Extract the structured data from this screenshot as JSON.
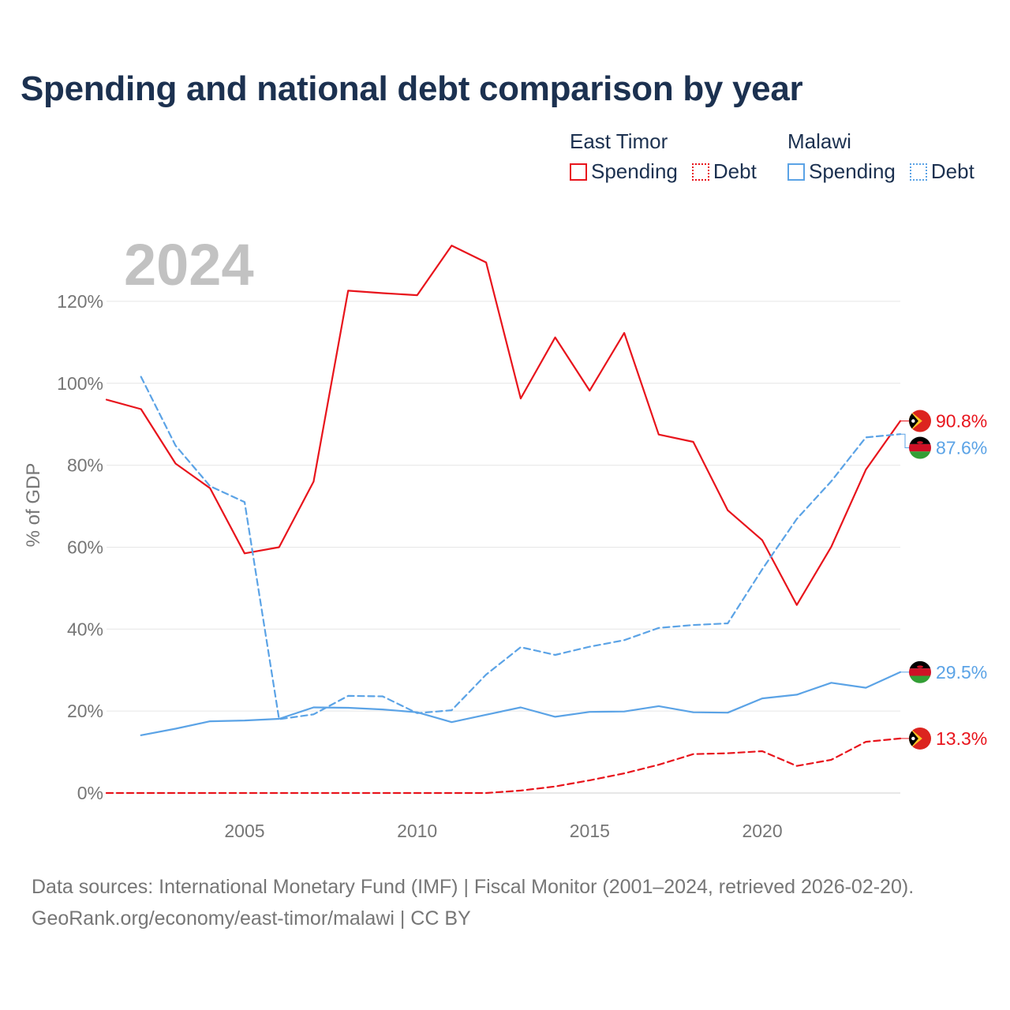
{
  "chart_data": {
    "type": "line",
    "title": "Spending and national debt comparison by year",
    "year_label": "2024",
    "ylabel": "% of GDP",
    "xlim": [
      2001,
      2024
    ],
    "ylim": [
      0,
      130
    ],
    "y_ticks": [
      0,
      20,
      40,
      60,
      80,
      100,
      120
    ],
    "y_tick_labels": [
      "0%",
      "20%",
      "40%",
      "60%",
      "80%",
      "100%",
      "120%"
    ],
    "x_ticks": [
      2005,
      2010,
      2015,
      2020
    ],
    "x_tick_labels": [
      "2005",
      "2010",
      "2015",
      "2020"
    ],
    "grid": true,
    "legend_groups": [
      {
        "name": "East Timor",
        "spending_label": "Spending",
        "debt_label": "Debt",
        "color": "#e8141c"
      },
      {
        "name": "Malawi",
        "spending_label": "Spending",
        "debt_label": "Debt",
        "color": "#5ba3e6"
      }
    ],
    "series": [
      {
        "id": "east-timor-spending",
        "name": "East Timor Spending",
        "country": "east-timor",
        "color": "#e8141c",
        "dash": false,
        "x": [
          2001,
          2002,
          2003,
          2004,
          2005,
          2006,
          2007,
          2008,
          2009,
          2010,
          2011,
          2012,
          2013,
          2014,
          2015,
          2016,
          2017,
          2018,
          2019,
          2020,
          2021,
          2022,
          2023,
          2024
        ],
        "values": [
          96,
          93.7,
          80.4,
          74.4,
          58.5,
          60,
          76,
          122.6,
          122,
          121.5,
          133.6,
          129.5,
          96.3,
          111.2,
          98.2,
          112.3,
          87.5,
          85.7,
          69,
          61.7,
          45.9,
          60.1,
          78.9,
          90.8
        ],
        "end_label": "90.8%"
      },
      {
        "id": "east-timor-debt",
        "name": "East Timor Debt",
        "country": "east-timor",
        "color": "#e8141c",
        "dash": true,
        "x": [
          2001,
          2002,
          2003,
          2004,
          2005,
          2006,
          2007,
          2008,
          2009,
          2010,
          2011,
          2012,
          2013,
          2014,
          2015,
          2016,
          2017,
          2018,
          2019,
          2020,
          2021,
          2022,
          2023,
          2024
        ],
        "values": [
          0,
          0,
          0,
          0,
          0,
          0,
          0,
          0,
          0,
          0,
          0,
          0,
          0.6,
          1.6,
          3.1,
          4.8,
          6.9,
          9.5,
          9.7,
          10.2,
          6.6,
          8.1,
          12.5,
          13.3
        ],
        "end_label": "13.3%"
      },
      {
        "id": "malawi-spending",
        "name": "Malawi Spending",
        "country": "malawi",
        "color": "#5ba3e6",
        "dash": false,
        "x": [
          2002,
          2003,
          2004,
          2005,
          2006,
          2007,
          2008,
          2009,
          2010,
          2011,
          2012,
          2013,
          2014,
          2015,
          2016,
          2017,
          2018,
          2019,
          2020,
          2021,
          2022,
          2023,
          2024
        ],
        "values": [
          14.1,
          15.7,
          17.5,
          17.7,
          18.1,
          20.9,
          20.8,
          20.4,
          19.7,
          17.3,
          19.1,
          20.9,
          18.6,
          19.8,
          19.9,
          21.2,
          19.7,
          19.6,
          23.1,
          24,
          26.9,
          25.7,
          29.5
        ],
        "end_label": "29.5%"
      },
      {
        "id": "malawi-debt",
        "name": "Malawi Debt",
        "country": "malawi",
        "color": "#5ba3e6",
        "dash": true,
        "x": [
          2002,
          2003,
          2004,
          2005,
          2006,
          2007,
          2008,
          2009,
          2010,
          2011,
          2012,
          2013,
          2014,
          2015,
          2016,
          2017,
          2018,
          2019,
          2020,
          2021,
          2022,
          2023,
          2024
        ],
        "values": [
          101.6,
          84.8,
          74.9,
          71,
          18,
          19.2,
          23.7,
          23.6,
          19.5,
          20.2,
          28.9,
          35.6,
          33.7,
          35.7,
          37.3,
          40.3,
          41,
          41.4,
          54.6,
          66.9,
          76.1,
          86.8,
          87.6
        ],
        "end_label": "87.6%"
      }
    ]
  },
  "footer": {
    "source_line": "Data sources: International Monetary Fund (IMF) | Fiscal Monitor (2001–2024, retrieved 2026-02-20).",
    "credit_line": "GeoRank.org/economy/east-timor/malawi | CC BY"
  }
}
